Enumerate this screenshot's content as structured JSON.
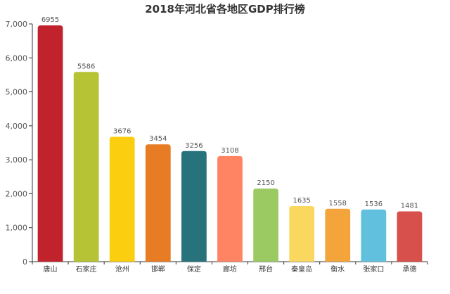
{
  "chart_data": {
    "type": "bar",
    "title": "2018年河北省各地区GDP排行榜",
    "categories": [
      "唐山",
      "石家庄",
      "沧州",
      "邯郸",
      "保定",
      "廊坊",
      "邢台",
      "秦皇岛",
      "衡水",
      "张家口",
      "承德"
    ],
    "values": [
      6955,
      5586,
      3676,
      3454,
      3256,
      3108,
      2150,
      1635,
      1558,
      1536,
      1481
    ],
    "colors": [
      "#c0232c",
      "#b5c334",
      "#fcce10",
      "#e87c25",
      "#27727b",
      "#fe8463",
      "#9bca63",
      "#fad860",
      "#f3a43b",
      "#60c0dd",
      "#d7504b"
    ],
    "ylim": [
      0,
      7000
    ],
    "yticks": [
      "0",
      "1,000",
      "2,000",
      "3,000",
      "4,000",
      "5,000",
      "6,000",
      "7,000"
    ],
    "xlabel": "",
    "ylabel": "",
    "grid": false,
    "legend": "none"
  }
}
